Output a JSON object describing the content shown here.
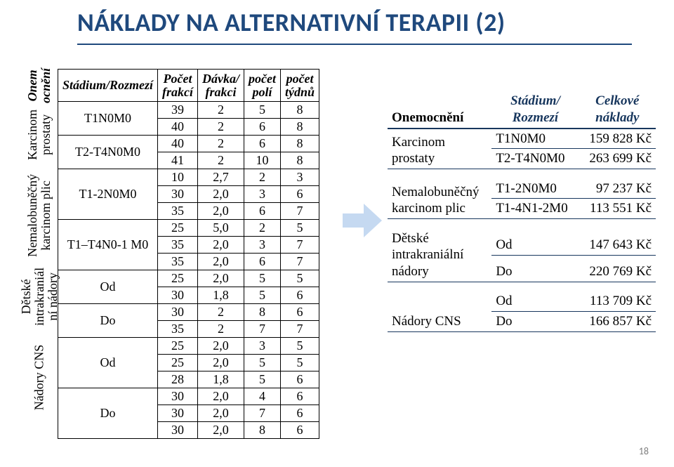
{
  "title": "NÁKLADY NA ALTERNATIVNÍ TERAPII (2)",
  "left_headers": {
    "onem": "Onem\nocnění",
    "stadium": "Stádium/Rozmezí",
    "pocet_frakci": "Počet\nfrakcí",
    "davka": "Dávka/\nfrakci",
    "pocet_poli": "počet\npolí",
    "pocet_tydnu": "počet\ntýdnů"
  },
  "groups": [
    {
      "label": "Karcinom\nprostaty",
      "rowspan": 4,
      "stadia": [
        {
          "name": "T1N0M0",
          "rowspan": 2,
          "rows": [
            [
              "39",
              "2",
              "5",
              "8"
            ],
            [
              "40",
              "2",
              "6",
              "8"
            ]
          ]
        },
        {
          "name": "T2-T4N0M0",
          "rowspan": 2,
          "rows": [
            [
              "40",
              "2",
              "6",
              "8"
            ],
            [
              "41",
              "2",
              "10",
              "8"
            ]
          ]
        }
      ]
    },
    {
      "label": "Nemalobuněčný\nkarcinom plic",
      "rowspan": 6,
      "stadia": [
        {
          "name": "T1-2N0M0",
          "rowspan": 3,
          "rows": [
            [
              "10",
              "2,7",
              "2",
              "3"
            ],
            [
              "30",
              "2,0",
              "3",
              "6"
            ],
            [
              "35",
              "2,0",
              "6",
              "7"
            ]
          ]
        },
        {
          "name": "T1–T4N0-1 M0",
          "rowspan": 3,
          "rows": [
            [
              "25",
              "5,0",
              "2",
              "5"
            ],
            [
              "35",
              "2,0",
              "3",
              "7"
            ],
            [
              "35",
              "2,0",
              "6",
              "7"
            ]
          ]
        }
      ]
    },
    {
      "label": "Dětské\nintrakraniál\nní nádory",
      "rowspan": 4,
      "stadia": [
        {
          "name": "Od",
          "rowspan": 2,
          "rows": [
            [
              "25",
              "2,0",
              "5",
              "5"
            ],
            [
              "30",
              "1,8",
              "5",
              "6"
            ]
          ]
        },
        {
          "name": "Do",
          "rowspan": 2,
          "rows": [
            [
              "30",
              "2",
              "8",
              "6"
            ],
            [
              "35",
              "2",
              "7",
              "7"
            ]
          ]
        }
      ]
    },
    {
      "label": "Nádory CNS",
      "rowspan": 6,
      "stadia": [
        {
          "name": "Od",
          "rowspan": 3,
          "rows": [
            [
              "25",
              "2,0",
              "3",
              "5"
            ],
            [
              "25",
              "2,0",
              "5",
              "5"
            ],
            [
              "28",
              "1,8",
              "5",
              "6"
            ]
          ]
        },
        {
          "name": "Do",
          "rowspan": 3,
          "rows": [
            [
              "30",
              "2,0",
              "4",
              "6"
            ],
            [
              "30",
              "2,0",
              "7",
              "6"
            ],
            [
              "30",
              "2,0",
              "8",
              "6"
            ]
          ]
        }
      ]
    }
  ],
  "right": {
    "head": {
      "c1": "Onemocnění",
      "c2": "Stádium/\nRozmezí",
      "c3": "Celkové\nnáklady"
    },
    "blocks": [
      {
        "label": "Karcinom\nprostaty",
        "rows": [
          {
            "s": "T1N0M0",
            "c": "159 828 Kč"
          },
          {
            "s": "T2-T4N0M0",
            "c": "263 699 Kč"
          }
        ]
      },
      {
        "label": "Nemalobuněčný\nkarcinom plic",
        "rows": [
          {
            "s": "T1-2N0M0",
            "c": "97 237 Kč"
          },
          {
            "s": "T1-4N1-2M0",
            "c": "113 551 Kč"
          }
        ]
      },
      {
        "label": "Dětské\nintrakraniální\nnádory",
        "rows": [
          {
            "s": "Od",
            "c": "147 643 Kč"
          },
          {
            "s": "Do",
            "c": "220 769 Kč"
          }
        ]
      },
      {
        "label": "Nádory CNS",
        "rows": [
          {
            "s": "Od",
            "c": "113 709 Kč"
          },
          {
            "s": "Do",
            "c": "166 857 Kč"
          }
        ]
      }
    ]
  },
  "pagenum": "18",
  "colors": {
    "title": "#1f497d",
    "right_border": "#17365d",
    "arrow_fill": "#c5d9f1"
  }
}
